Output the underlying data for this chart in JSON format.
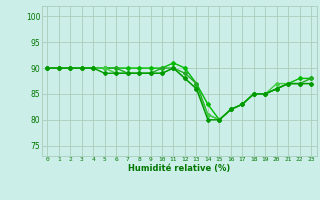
{
  "xlabel": "Humidité relative (%)",
  "xlim": [
    -0.5,
    23.5
  ],
  "ylim": [
    73,
    102
  ],
  "yticks": [
    75,
    80,
    85,
    90,
    95,
    100
  ],
  "xticks": [
    0,
    1,
    2,
    3,
    4,
    5,
    6,
    7,
    8,
    9,
    10,
    11,
    12,
    13,
    14,
    15,
    16,
    17,
    18,
    19,
    20,
    21,
    22,
    23
  ],
  "background_color": "#cceee8",
  "grid_color": "#aaccbb",
  "lines": [
    {
      "x": [
        0,
        1,
        2,
        3,
        4,
        5,
        6,
        7,
        8,
        9,
        10,
        11,
        12,
        13,
        14,
        15,
        16,
        17,
        18,
        19,
        20,
        21,
        22,
        23
      ],
      "y": [
        90,
        90,
        90,
        90,
        90,
        90,
        90,
        90,
        90,
        90,
        90,
        91,
        90,
        87,
        83,
        80,
        82,
        83,
        85,
        85,
        86,
        87,
        88,
        88
      ],
      "color": "#00bb00",
      "lw": 1.0,
      "marker": "D",
      "ms": 2.0
    },
    {
      "x": [
        0,
        1,
        2,
        3,
        4,
        5,
        6,
        7,
        8,
        9,
        10,
        11,
        12,
        13,
        14,
        15,
        16,
        17,
        18,
        19,
        20,
        21,
        22,
        23
      ],
      "y": [
        90,
        90,
        90,
        90,
        90,
        90,
        90,
        89,
        89,
        89,
        90,
        90,
        89,
        87,
        81,
        80,
        82,
        83,
        85,
        85,
        86,
        87,
        87,
        88
      ],
      "color": "#22aa22",
      "lw": 1.0,
      "marker": "D",
      "ms": 2.0
    },
    {
      "x": [
        0,
        1,
        2,
        3,
        4,
        5,
        6,
        7,
        8,
        9,
        10,
        11,
        12,
        13,
        14,
        15,
        16,
        17,
        18,
        19,
        20,
        21,
        22,
        23
      ],
      "y": [
        90,
        90,
        90,
        90,
        90,
        90,
        89,
        89,
        89,
        89,
        89,
        90,
        88,
        86,
        81,
        80,
        82,
        83,
        85,
        85,
        87,
        87,
        87,
        87
      ],
      "color": "#44cc44",
      "lw": 1.0,
      "marker": "D",
      "ms": 2.0
    },
    {
      "x": [
        0,
        1,
        2,
        3,
        4,
        5,
        6,
        7,
        8,
        9,
        10,
        11,
        12,
        13,
        14,
        15,
        16,
        17,
        18,
        19,
        20,
        21,
        22,
        23
      ],
      "y": [
        90,
        90,
        90,
        90,
        90,
        89,
        89,
        89,
        89,
        89,
        89,
        90,
        88,
        86,
        80,
        80,
        82,
        83,
        85,
        85,
        86,
        87,
        87,
        87
      ],
      "color": "#009900",
      "lw": 1.0,
      "marker": "D",
      "ms": 2.0
    }
  ]
}
